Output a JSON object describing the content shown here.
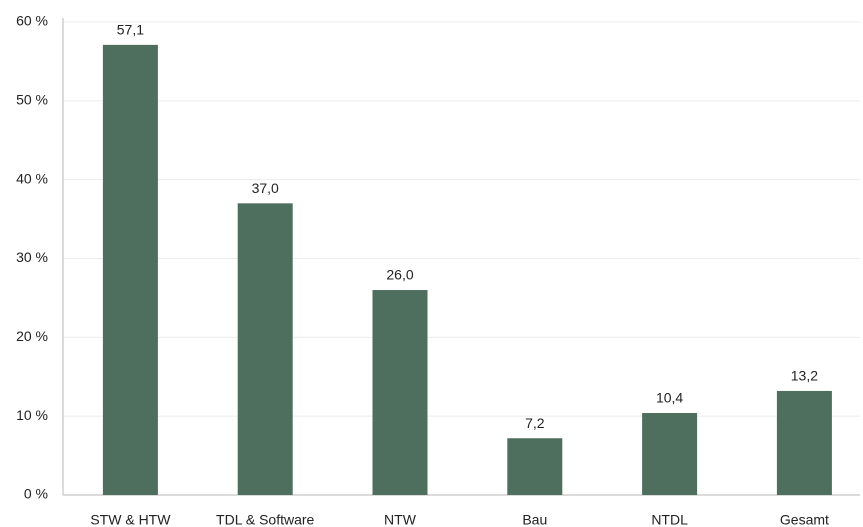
{
  "chart_data": {
    "type": "bar",
    "categories": [
      "STW & HTW",
      "TDL & Software",
      "NTW",
      "Bau",
      "NTDL",
      "Gesamt"
    ],
    "values": [
      57.1,
      37.0,
      26.0,
      7.2,
      10.4,
      13.2
    ],
    "value_labels": [
      "57,1",
      "37,0",
      "26,0",
      "7,2",
      "10,4",
      "13,2"
    ],
    "color": "#4e6e5e",
    "ylim": [
      0,
      60
    ],
    "yticks": [
      {
        "value": 0,
        "label": "0 %"
      },
      {
        "value": 10,
        "label": "10 %"
      },
      {
        "value": 20,
        "label": "20 %"
      },
      {
        "value": 30,
        "label": "30 %"
      },
      {
        "value": 40,
        "label": "40 %"
      },
      {
        "value": 50,
        "label": "50 %"
      },
      {
        "value": 60,
        "label": "60 %"
      }
    ],
    "grid": true
  }
}
